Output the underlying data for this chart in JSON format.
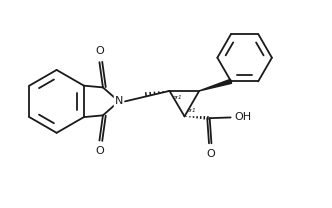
{
  "bg_color": "#ffffff",
  "line_color": "#1a1a1a",
  "line_width": 1.3,
  "font_size": 7.5,
  "fig_width": 3.32,
  "fig_height": 2.08,
  "dpi": 100,
  "xlim": [
    0,
    9.5
  ],
  "ylim": [
    0,
    5.95
  ]
}
